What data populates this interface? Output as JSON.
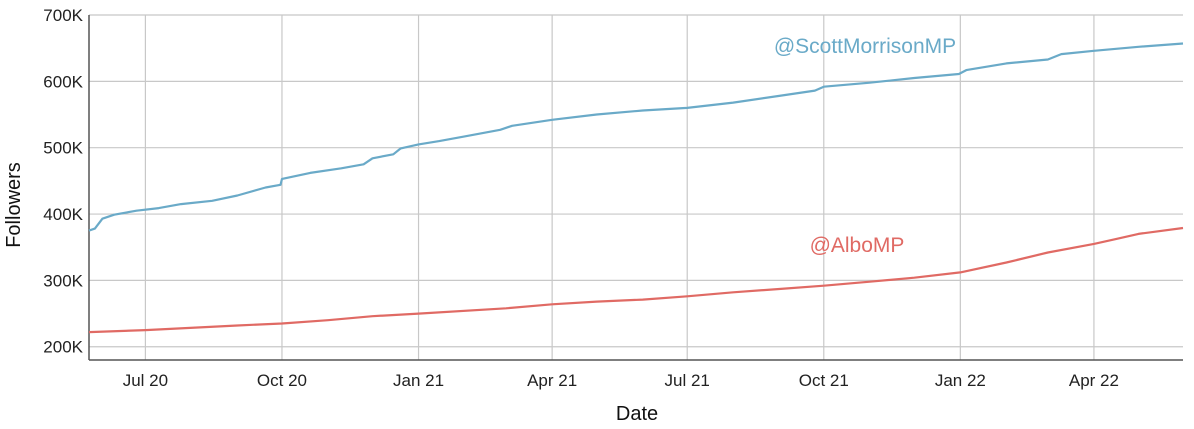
{
  "chart_data": {
    "type": "line",
    "xlabel": "Date",
    "ylabel": "Followers",
    "x_ticks": [
      {
        "label": "Jul 20",
        "date": "2020-07-01"
      },
      {
        "label": "Oct 20",
        "date": "2020-10-01"
      },
      {
        "label": "Jan 21",
        "date": "2021-01-01"
      },
      {
        "label": "Apr 21",
        "date": "2021-04-01"
      },
      {
        "label": "Jul 21",
        "date": "2021-07-01"
      },
      {
        "label": "Oct 21",
        "date": "2021-10-01"
      },
      {
        "label": "Jan 22",
        "date": "2022-01-01"
      },
      {
        "label": "Apr 22",
        "date": "2022-04-01"
      }
    ],
    "xlim": [
      "2020-05-24",
      "2022-05-31"
    ],
    "y_ticks": [
      {
        "label": "200K",
        "value": 200000
      },
      {
        "label": "300K",
        "value": 300000
      },
      {
        "label": "400K",
        "value": 400000
      },
      {
        "label": "500K",
        "value": 500000
      },
      {
        "label": "600K",
        "value": 600000
      },
      {
        "label": "700K",
        "value": 700000
      }
    ],
    "ylim": [
      180000,
      700000
    ],
    "grid": true,
    "series": [
      {
        "name": "@ScottMorrisonMP",
        "color": "#6aaac8",
        "points": [
          [
            "2020-05-24",
            375000
          ],
          [
            "2020-05-28",
            378000
          ],
          [
            "2020-06-02",
            393000
          ],
          [
            "2020-06-10",
            399000
          ],
          [
            "2020-06-25",
            405000
          ],
          [
            "2020-07-10",
            409000
          ],
          [
            "2020-07-25",
            415000
          ],
          [
            "2020-08-15",
            420000
          ],
          [
            "2020-09-01",
            428000
          ],
          [
            "2020-09-20",
            440000
          ],
          [
            "2020-09-30",
            444000
          ],
          [
            "2020-10-01",
            453000
          ],
          [
            "2020-10-20",
            462000
          ],
          [
            "2020-11-10",
            469000
          ],
          [
            "2020-11-25",
            475000
          ],
          [
            "2020-12-01",
            484000
          ],
          [
            "2020-12-15",
            490000
          ],
          [
            "2020-12-20",
            499000
          ],
          [
            "2021-01-01",
            505000
          ],
          [
            "2021-01-15",
            510000
          ],
          [
            "2021-02-01",
            517000
          ],
          [
            "2021-02-25",
            527000
          ],
          [
            "2021-03-05",
            533000
          ],
          [
            "2021-04-01",
            542000
          ],
          [
            "2021-05-01",
            550000
          ],
          [
            "2021-06-01",
            556000
          ],
          [
            "2021-07-01",
            560000
          ],
          [
            "2021-08-01",
            568000
          ],
          [
            "2021-09-01",
            578000
          ],
          [
            "2021-09-25",
            586000
          ],
          [
            "2021-10-01",
            592000
          ],
          [
            "2021-11-01",
            598000
          ],
          [
            "2021-12-01",
            605000
          ],
          [
            "2021-12-31",
            611000
          ],
          [
            "2022-01-05",
            617000
          ],
          [
            "2022-02-01",
            627000
          ],
          [
            "2022-03-01",
            633000
          ],
          [
            "2022-03-10",
            641000
          ],
          [
            "2022-04-01",
            646000
          ],
          [
            "2022-05-01",
            652000
          ],
          [
            "2022-05-31",
            657000
          ]
        ]
      },
      {
        "name": "@AlboMP",
        "color": "#e06a64",
        "points": [
          [
            "2020-05-24",
            222000
          ],
          [
            "2020-07-01",
            225000
          ],
          [
            "2020-09-01",
            232000
          ],
          [
            "2020-10-01",
            235000
          ],
          [
            "2020-11-01",
            240000
          ],
          [
            "2020-12-01",
            246000
          ],
          [
            "2021-01-01",
            250000
          ],
          [
            "2021-03-01",
            258000
          ],
          [
            "2021-04-01",
            264000
          ],
          [
            "2021-05-01",
            268000
          ],
          [
            "2021-06-01",
            271000
          ],
          [
            "2021-07-01",
            276000
          ],
          [
            "2021-08-01",
            282000
          ],
          [
            "2021-09-01",
            287000
          ],
          [
            "2021-10-01",
            292000
          ],
          [
            "2021-11-01",
            298000
          ],
          [
            "2021-12-01",
            304000
          ],
          [
            "2022-01-01",
            312000
          ],
          [
            "2022-02-01",
            327000
          ],
          [
            "2022-03-01",
            342000
          ],
          [
            "2022-04-01",
            355000
          ],
          [
            "2022-04-15",
            362000
          ],
          [
            "2022-05-01",
            370000
          ],
          [
            "2022-05-31",
            379000
          ]
        ]
      }
    ]
  }
}
